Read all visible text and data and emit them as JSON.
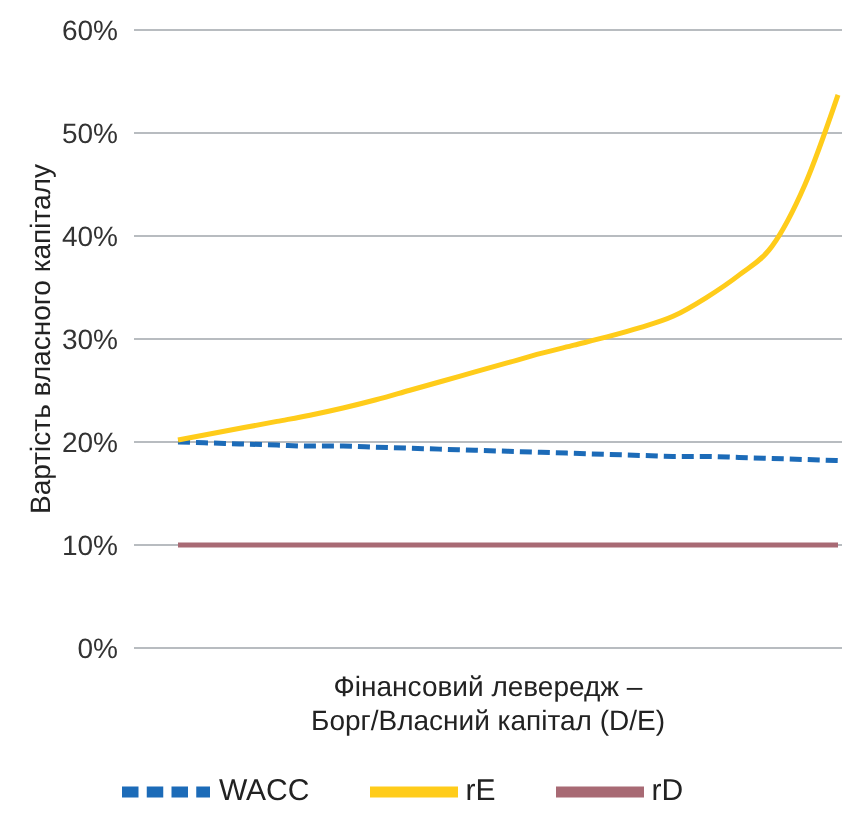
{
  "chart_data": {
    "type": "line",
    "xlabel": "Фінансовий левередж – Борг/Власний капітал (D/E)",
    "ylabel": "Вартість власного капіталу",
    "categories": [
      null,
      null,
      null,
      null,
      null,
      null,
      null,
      null,
      null,
      null,
      null,
      null,
      null,
      null,
      null,
      null,
      null,
      null,
      null,
      null,
      null
    ],
    "series": [
      {
        "name": "WACC",
        "color": "#1c6bb8",
        "line_style": "dashed",
        "values": [
          20.0,
          19.9,
          19.8,
          19.7,
          19.6,
          19.6,
          19.5,
          19.4,
          19.3,
          19.2,
          19.1,
          19.0,
          18.9,
          18.8,
          18.7,
          18.6,
          18.6,
          18.5,
          18.4,
          18.3,
          18.2
        ]
      },
      {
        "name": "rE",
        "color": "#ffcc1a",
        "line_style": "solid",
        "values": [
          20.2,
          20.8,
          21.4,
          22.0,
          22.6,
          23.3,
          24.1,
          25.0,
          25.9,
          26.8,
          27.7,
          28.6,
          29.4,
          30.2,
          31.1,
          32.2,
          34.0,
          36.2,
          39.0,
          45.0,
          53.7
        ]
      },
      {
        "name": "rD",
        "color": "#a86a74",
        "line_style": "solid",
        "values": [
          10,
          10,
          10,
          10,
          10,
          10,
          10,
          10,
          10,
          10,
          10,
          10,
          10,
          10,
          10,
          10,
          10,
          10,
          10,
          10,
          10
        ]
      }
    ],
    "ylim": [
      0,
      60
    ],
    "yticks": [
      {
        "value": 0,
        "label": "0%"
      },
      {
        "value": 10,
        "label": "10%"
      },
      {
        "value": 20,
        "label": "20%"
      },
      {
        "value": 30,
        "label": "30%"
      },
      {
        "value": 40,
        "label": "40%"
      },
      {
        "value": 50,
        "label": "50%"
      },
      {
        "value": 60,
        "label": "60%"
      }
    ],
    "grid": "y",
    "legend": "bottom",
    "marker": "none",
    "tick_labels": "y"
  }
}
